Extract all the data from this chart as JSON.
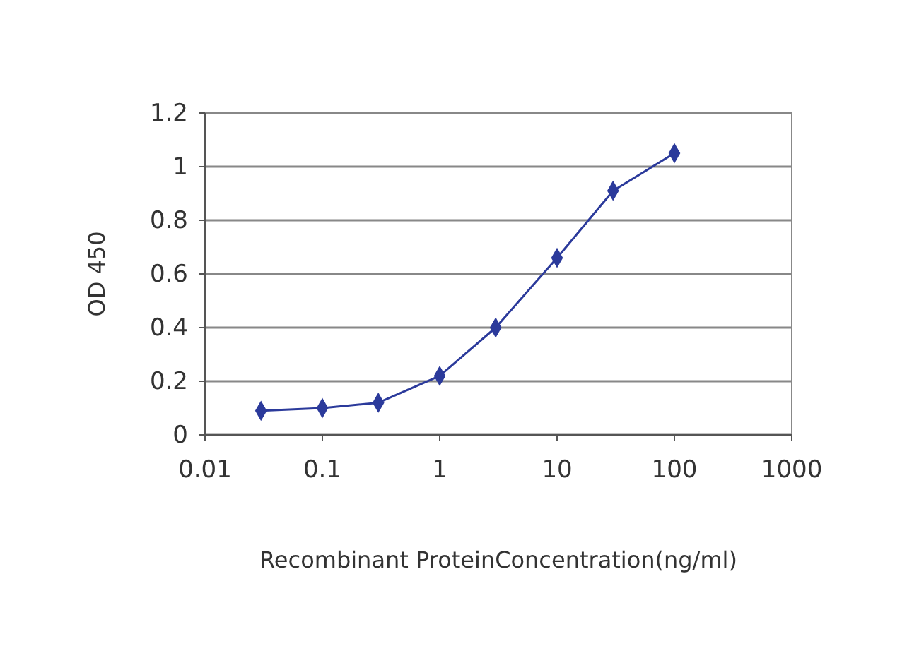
{
  "chart_data": {
    "type": "line",
    "xlabel": "Recombinant ProteinConcentration(ng/ml)",
    "ylabel": "OD 450",
    "x": [
      0.03,
      0.1,
      0.3,
      1,
      3,
      10,
      30,
      100
    ],
    "series": [
      {
        "color": "#2b3a9b",
        "values": [
          0.09,
          0.1,
          0.12,
          0.22,
          0.4,
          0.66,
          0.91,
          1.05
        ]
      }
    ],
    "log": "x",
    "xlim": [
      0.01,
      1000
    ],
    "xticks": [
      0.01,
      0.1,
      1,
      10,
      100,
      1000
    ],
    "ylim": [
      0,
      1.2
    ],
    "yticks": [
      0,
      0.2,
      0.4,
      0.6,
      0.8,
      1,
      1.2
    ],
    "grid": "y",
    "marker": "diamond",
    "line_style": "solid"
  }
}
